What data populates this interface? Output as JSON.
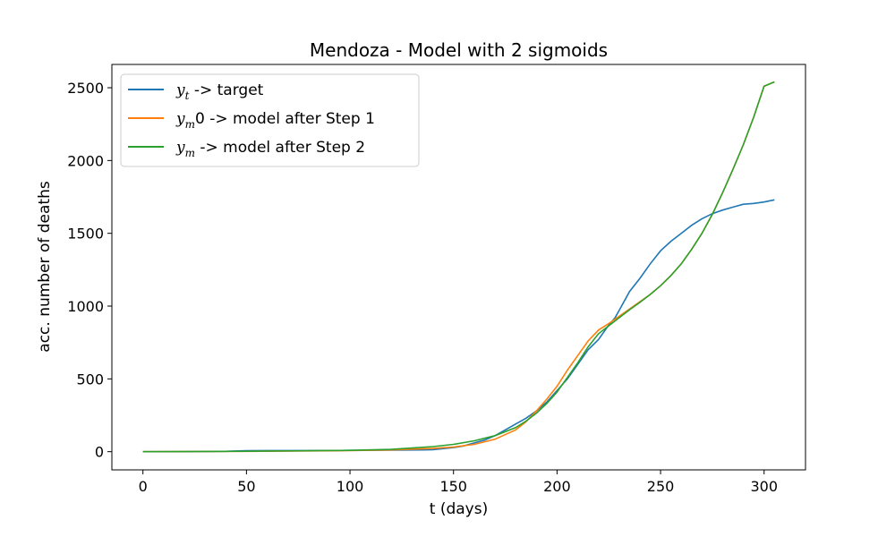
{
  "chart_data": {
    "type": "line",
    "title": "Mendoza - Model with 2 sigmoids",
    "xlabel": "t (days)",
    "ylabel": "acc. number of deaths",
    "xlim": [
      -15,
      320
    ],
    "ylim": [
      -125,
      2660
    ],
    "xticks": [
      0,
      50,
      100,
      150,
      200,
      250,
      300
    ],
    "yticks": [
      0,
      500,
      1000,
      1500,
      2000,
      2500
    ],
    "grid": false,
    "legend_position": "top-left",
    "series": [
      {
        "name": "y_t ->  target",
        "legend": {
          "sym": "y",
          "sub": "t",
          "rest": " ->  target"
        },
        "color": "#1f77b4",
        "x": [
          0,
          20,
          40,
          50,
          60,
          80,
          100,
          120,
          135,
          140,
          150,
          155,
          160,
          165,
          170,
          175,
          180,
          185,
          190,
          195,
          200,
          205,
          210,
          215,
          220,
          225,
          228,
          230,
          235,
          240,
          245,
          250,
          255,
          260,
          265,
          270,
          275,
          280,
          285,
          290,
          295,
          300,
          305
        ],
        "y": [
          0,
          0,
          2,
          7,
          8,
          8,
          9,
          11,
          12,
          14,
          28,
          40,
          60,
          80,
          110,
          150,
          190,
          230,
          280,
          340,
          420,
          500,
          600,
          700,
          770,
          870,
          920,
          970,
          1100,
          1190,
          1290,
          1380,
          1445,
          1500,
          1555,
          1600,
          1635,
          1660,
          1680,
          1700,
          1705,
          1715,
          1730
        ]
      },
      {
        "name": "y_m0 ->  model after Step 1",
        "legend": {
          "sym": "y",
          "sub": "m",
          "rest": "0 ->  model after Step 1"
        },
        "color": "#ff7f0e",
        "x": [
          0,
          50,
          100,
          120,
          140,
          150,
          160,
          170,
          180,
          185,
          190,
          195,
          200,
          205,
          210,
          215,
          220,
          225,
          230,
          235,
          240,
          245,
          250,
          255,
          260,
          265,
          270,
          275,
          280,
          285,
          290,
          295,
          300,
          305
        ],
        "y": [
          0,
          2,
          7,
          12,
          22,
          32,
          50,
          85,
          150,
          205,
          280,
          360,
          450,
          560,
          660,
          760,
          835,
          880,
          930,
          980,
          1030,
          1080,
          1140,
          1210,
          1290,
          1390,
          1500,
          1630,
          1780,
          1940,
          2110,
          2300,
          2510,
          2540
        ]
      },
      {
        "name": "y_m ->  model after Step 2",
        "legend": {
          "sym": "y",
          "sub": "m",
          "rest": " ->  model after Step 2"
        },
        "color": "#2ca02c",
        "x": [
          0,
          50,
          100,
          120,
          140,
          150,
          160,
          170,
          180,
          185,
          190,
          195,
          200,
          205,
          210,
          215,
          220,
          225,
          230,
          235,
          240,
          245,
          250,
          255,
          260,
          265,
          270,
          275,
          280,
          285,
          290,
          295,
          300,
          305
        ],
        "y": [
          0,
          3,
          9,
          16,
          35,
          50,
          75,
          110,
          165,
          210,
          265,
          330,
          410,
          510,
          610,
          720,
          810,
          865,
          920,
          975,
          1025,
          1080,
          1140,
          1210,
          1290,
          1390,
          1500,
          1630,
          1780,
          1940,
          2110,
          2300,
          2510,
          2540
        ]
      }
    ]
  }
}
